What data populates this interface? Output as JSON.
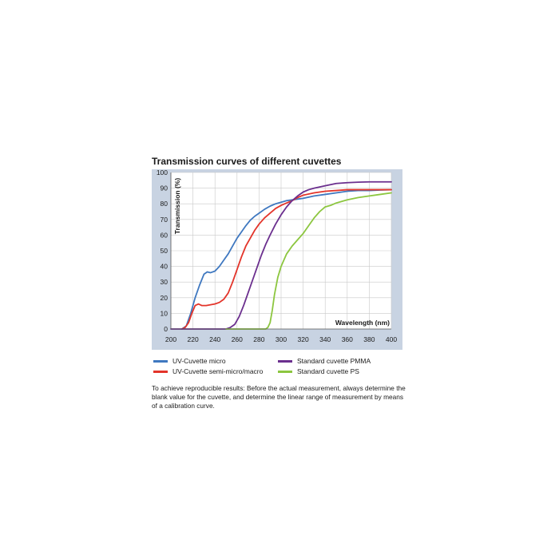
{
  "colors": {
    "panel": "#c8d3e2",
    "plot_bg": "#ffffff",
    "grid": "#c9c9c9",
    "axis": "#555555"
  },
  "page": {
    "title": "Transmission curves of different cuvettes",
    "note": "To achieve reproducible results: Before the actual measurement, always determine the blank value for the cuvette, and determine the linear range of measurement by means of a calibration curve."
  },
  "chart_data": {
    "type": "line",
    "title": "Transmission curves of different cuvettes",
    "xlabel": "Wavelength (nm)",
    "ylabel": "Transmission (%)",
    "xlim": [
      200,
      400
    ],
    "ylim": [
      0,
      100
    ],
    "xticks": [
      200,
      220,
      240,
      260,
      280,
      300,
      320,
      340,
      360,
      380,
      400
    ],
    "yticks": [
      0,
      10,
      20,
      30,
      40,
      50,
      60,
      70,
      80,
      90,
      100
    ],
    "grid": true,
    "legend_position": "bottom",
    "series": [
      {
        "name": "UV-Cuvette micro",
        "color": "#3f78c0",
        "x": [
          210,
          214,
          218,
          222,
          226,
          230,
          233,
          236,
          240,
          244,
          248,
          252,
          256,
          260,
          264,
          268,
          272,
          276,
          280,
          285,
          290,
          295,
          300,
          305,
          310,
          315,
          320,
          330,
          340,
          350,
          360,
          370,
          380,
          390,
          400
        ],
        "y": [
          0,
          2,
          10,
          20,
          28,
          35,
          36.5,
          36,
          37,
          40,
          44,
          48,
          53,
          58,
          62,
          66,
          69.5,
          72,
          74,
          76.5,
          78.5,
          80,
          81,
          82,
          82.5,
          83,
          83.5,
          85,
          86,
          87,
          88,
          88.5,
          88.5,
          88.8,
          89
        ]
      },
      {
        "name": "UV-Cuvette semi-micro/macro",
        "color": "#e3342a",
        "x": [
          210,
          213,
          216,
          219,
          222,
          225,
          228,
          232,
          236,
          240,
          244,
          248,
          252,
          256,
          260,
          264,
          268,
          272,
          276,
          280,
          285,
          290,
          295,
          300,
          305,
          310,
          315,
          320,
          330,
          340,
          350,
          360,
          370,
          380,
          390,
          400
        ],
        "y": [
          0,
          1,
          4,
          10,
          15,
          16,
          15,
          15,
          15.5,
          16,
          17,
          19,
          23,
          30,
          38,
          46,
          53,
          58,
          63,
          67,
          71,
          74,
          77,
          79,
          80.5,
          82,
          84,
          85.5,
          87,
          88,
          88.5,
          89,
          89,
          89,
          89,
          89
        ]
      },
      {
        "name": "Standard cuvette PMMA",
        "color": "#6b2f8e",
        "x": [
          200,
          250,
          254,
          258,
          262,
          266,
          270,
          274,
          278,
          282,
          286,
          290,
          295,
          300,
          305,
          310,
          315,
          320,
          325,
          330,
          340,
          350,
          360,
          370,
          380,
          390,
          400
        ],
        "y": [
          0,
          0,
          1,
          3,
          8,
          15,
          23,
          31,
          39,
          47,
          54,
          60,
          67,
          73,
          78,
          82,
          85,
          87.5,
          89,
          90,
          91.5,
          93,
          93.5,
          93.8,
          94,
          94,
          94
        ]
      },
      {
        "name": "Standard cuvette PS",
        "color": "#8cc63f",
        "x": [
          250,
          286,
          288,
          290,
          292,
          294,
          297,
          300,
          305,
          310,
          315,
          320,
          325,
          330,
          335,
          340,
          345,
          350,
          360,
          370,
          380,
          390,
          400
        ],
        "y": [
          0,
          0,
          1,
          4,
          12,
          22,
          33,
          40,
          48,
          53,
          57,
          61,
          66,
          71,
          75,
          78,
          79,
          80.5,
          82.5,
          84,
          85,
          86,
          87
        ]
      }
    ]
  }
}
